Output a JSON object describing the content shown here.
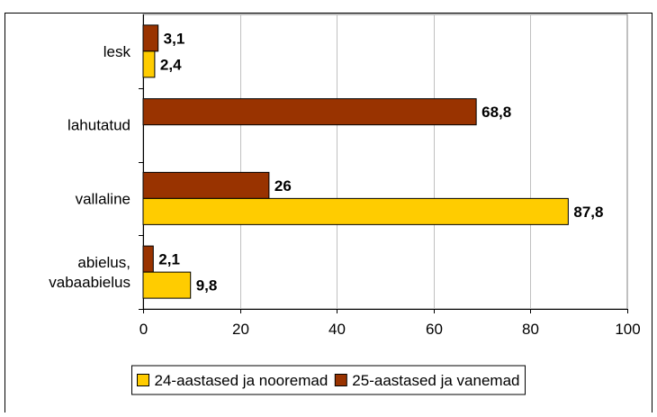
{
  "chart_data": {
    "type": "bar",
    "orientation": "horizontal",
    "categories": [
      "abielus, vabaabielus",
      "vallaline",
      "lahutatud",
      "lesk"
    ],
    "category_lines": [
      [
        "abielus,",
        "vabaabielus"
      ],
      [
        "vallaline"
      ],
      [
        "lahutatud"
      ],
      [
        "lesk"
      ]
    ],
    "series": [
      {
        "name": "24-aastased ja nooremad",
        "color": "#FFCC00",
        "values": [
          9.8,
          87.8,
          null,
          2.4
        ],
        "labels": [
          "9,8",
          "87,8",
          "",
          "2,4"
        ]
      },
      {
        "name": "25-aastased ja vanemad",
        "color": "#993300",
        "values": [
          2.1,
          26,
          68.8,
          3.1
        ],
        "labels": [
          "2,1",
          "26",
          "68,8",
          "3,1"
        ]
      }
    ],
    "xlim": [
      0,
      100
    ],
    "xticks": [
      0,
      20,
      40,
      60,
      80,
      100
    ],
    "xtick_labels": [
      "0",
      "20",
      "40",
      "60",
      "80",
      "100"
    ],
    "grid": true,
    "legend_position": "bottom",
    "title": "",
    "xlabel": "",
    "ylabel": ""
  }
}
